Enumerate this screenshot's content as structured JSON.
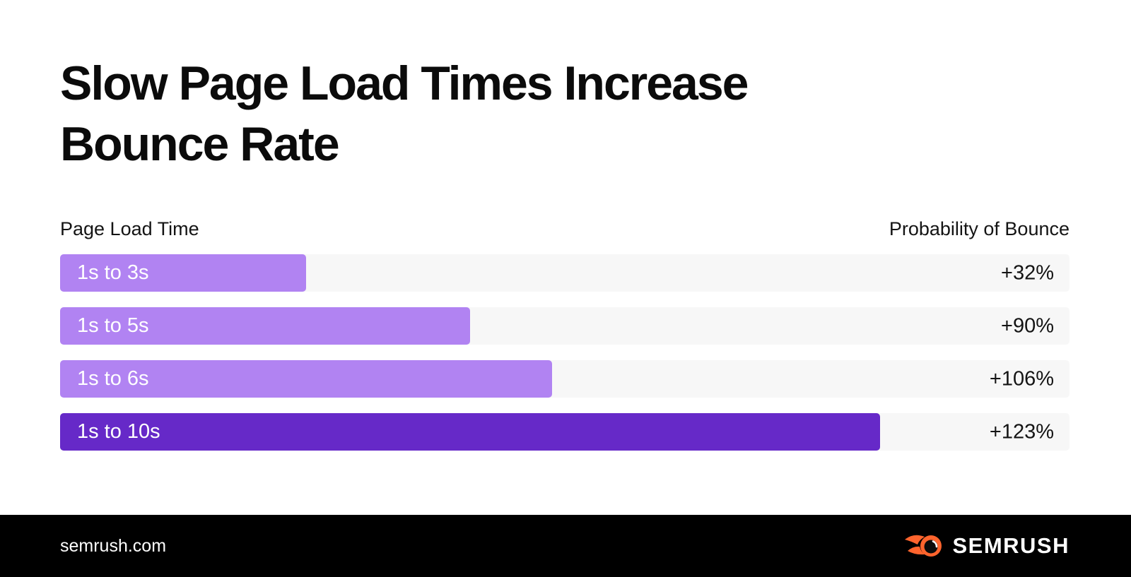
{
  "page": {
    "title_line1": "Slow Page Load Times Increase",
    "title_line2": "Bounce Rate"
  },
  "chart_data": {
    "type": "bar",
    "orientation": "horizontal",
    "title": "Slow Page Load Times Increase Bounce Rate",
    "category_axis_label": "Page Load Time",
    "value_axis_label": "Probability of Bounce",
    "categories": [
      "1s to 3s",
      "1s to 5s",
      "1s to 6s",
      "1s to 10s"
    ],
    "values_bounce_increase_pct": [
      32,
      90,
      106,
      123
    ],
    "rows": [
      {
        "label": "1s to 3s",
        "value": "+32%",
        "seconds": 3,
        "bar_color": "#b183f2"
      },
      {
        "label": "1s to 5s",
        "value": "+90%",
        "seconds": 5,
        "bar_color": "#b183f2"
      },
      {
        "label": "1s to 6s",
        "value": "+106%",
        "seconds": 6,
        "bar_color": "#b183f2"
      },
      {
        "label": "1s to 10s",
        "value": "+123%",
        "seconds": 10,
        "bar_color": "#6629c8"
      }
    ],
    "bar_width_pct_per_second": 8.12,
    "track_color": "#f7f7f7",
    "grid": false,
    "legend_position": "none"
  },
  "footer": {
    "website": "semrush.com",
    "brand": "SEMRUSH",
    "brand_orange": "#ff642d",
    "background": "#000000"
  },
  "colors": {
    "accent_light": "#b183f2",
    "accent_dark": "#6629c8",
    "track": "#f7f7f7",
    "title_text": "#0b0b0b",
    "footer_background": "#000000"
  }
}
